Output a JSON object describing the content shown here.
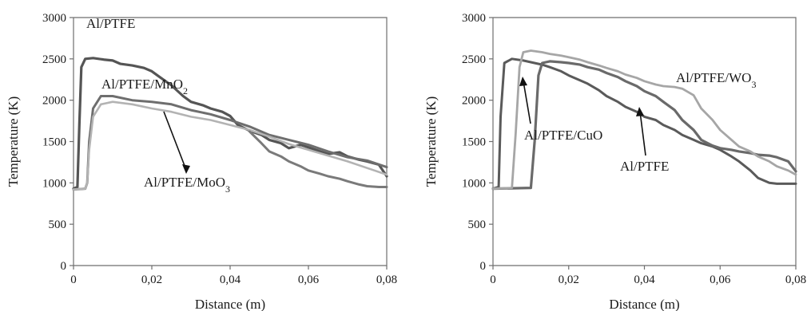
{
  "chart_data": [
    {
      "type": "line",
      "xlabel": "Distance (m)",
      "ylabel": "Temperature (K)",
      "xlim": [
        0,
        0.08
      ],
      "ylim": [
        0,
        3000
      ],
      "xticks": [
        0,
        0.02,
        0.04,
        0.06,
        0.08
      ],
      "xtick_labels": [
        "0",
        "0,02",
        "0,04",
        "0,06",
        "0,08"
      ],
      "yticks": [
        0,
        500,
        1000,
        1500,
        2000,
        2500,
        3000
      ],
      "ytick_labels": [
        "0",
        "500",
        "1000",
        "1500",
        "2000",
        "2500",
        "3000"
      ],
      "grid": false,
      "series": [
        {
          "name": "Al/PTFE",
          "color": "#555555",
          "x": [
            0,
            0.001,
            0.0015,
            0.002,
            0.003,
            0.005,
            0.008,
            0.01,
            0.012,
            0.015,
            0.018,
            0.02,
            0.022,
            0.025,
            0.028,
            0.03,
            0.033,
            0.035,
            0.038,
            0.04,
            0.042,
            0.045,
            0.048,
            0.05,
            0.053,
            0.055,
            0.058,
            0.06,
            0.063,
            0.065,
            0.068,
            0.07,
            0.073,
            0.075,
            0.078,
            0.08
          ],
          "y": [
            930,
            950,
            1700,
            2400,
            2500,
            2510,
            2490,
            2480,
            2440,
            2420,
            2390,
            2350,
            2280,
            2180,
            2050,
            1980,
            1940,
            1900,
            1860,
            1810,
            1700,
            1630,
            1580,
            1520,
            1480,
            1420,
            1460,
            1430,
            1380,
            1350,
            1370,
            1320,
            1280,
            1260,
            1220,
            1080
          ]
        },
        {
          "name": "Al/PTFE/MnO",
          "name_sub": "2",
          "color": "#6e6e6e",
          "x": [
            0,
            0.003,
            0.0035,
            0.004,
            0.005,
            0.007,
            0.01,
            0.015,
            0.02,
            0.025,
            0.03,
            0.035,
            0.04,
            0.045,
            0.05,
            0.055,
            0.06,
            0.065,
            0.07,
            0.075,
            0.08
          ],
          "y": [
            920,
            930,
            1000,
            1500,
            1900,
            2050,
            2050,
            2000,
            1980,
            1950,
            1880,
            1830,
            1760,
            1680,
            1580,
            1520,
            1460,
            1380,
            1310,
            1270,
            1190
          ]
        },
        {
          "name": "Al/PTFE/MoO",
          "name_sub": "3",
          "color": "#b3b3b3",
          "x": [
            0,
            0.003,
            0.0035,
            0.004,
            0.005,
            0.007,
            0.01,
            0.015,
            0.02,
            0.025,
            0.03,
            0.035,
            0.04,
            0.045,
            0.05,
            0.055,
            0.06,
            0.065,
            0.07,
            0.075,
            0.08
          ],
          "y": [
            920,
            930,
            1000,
            1400,
            1800,
            1950,
            1980,
            1950,
            1900,
            1860,
            1800,
            1760,
            1700,
            1640,
            1560,
            1470,
            1400,
            1330,
            1260,
            1180,
            1100
          ]
        },
        {
          "name": "Al/PTFE/MnO2 (lower)",
          "name_hidden": true,
          "color": "#7a7a7a",
          "x": [
            0.045,
            0.048,
            0.05,
            0.053,
            0.055,
            0.058,
            0.06,
            0.063,
            0.065,
            0.068,
            0.07,
            0.073,
            0.075,
            0.078,
            0.08
          ],
          "y": [
            1620,
            1480,
            1380,
            1320,
            1260,
            1200,
            1150,
            1110,
            1080,
            1050,
            1020,
            980,
            960,
            950,
            950
          ]
        }
      ],
      "annotations": [
        {
          "text": "Al/PTFE",
          "sub": ""
        },
        {
          "text": "Al/PTFE/MnO",
          "sub": "2"
        },
        {
          "text": "Al/PTFE/MoO",
          "sub": "3"
        }
      ]
    },
    {
      "type": "line",
      "xlabel": "Distance (m)",
      "ylabel": "Temperature (K)",
      "xlim": [
        0,
        0.08
      ],
      "ylim": [
        0,
        3000
      ],
      "xticks": [
        0,
        0.02,
        0.04,
        0.06,
        0.08
      ],
      "xtick_labels": [
        "0",
        "0,02",
        "0,04",
        "0,06",
        "0,08"
      ],
      "yticks": [
        0,
        500,
        1000,
        1500,
        2000,
        2500,
        3000
      ],
      "ytick_labels": [
        "0",
        "500",
        "1000",
        "1500",
        "2000",
        "2500",
        "3000"
      ],
      "grid": false,
      "series": [
        {
          "name": "Al/PTFE",
          "color": "#5a5a5a",
          "x": [
            0,
            0.0015,
            0.002,
            0.003,
            0.005,
            0.008,
            0.01,
            0.013,
            0.015,
            0.018,
            0.02,
            0.023,
            0.025,
            0.028,
            0.03,
            0.033,
            0.035,
            0.038,
            0.04,
            0.043,
            0.045,
            0.048,
            0.05,
            0.053,
            0.055,
            0.058,
            0.06,
            0.063,
            0.065,
            0.068,
            0.07,
            0.073,
            0.075,
            0.078,
            0.08
          ],
          "y": [
            930,
            950,
            1800,
            2450,
            2500,
            2480,
            2460,
            2430,
            2400,
            2350,
            2300,
            2240,
            2200,
            2120,
            2050,
            1980,
            1920,
            1860,
            1800,
            1760,
            1700,
            1640,
            1580,
            1520,
            1480,
            1440,
            1400,
            1320,
            1260,
            1150,
            1060,
            1000,
            990,
            990,
            990
          ]
        },
        {
          "name": "Al/PTFE/CuO",
          "color": "#6a6a6a",
          "x": [
            0,
            0.01,
            0.011,
            0.012,
            0.013,
            0.015,
            0.018,
            0.02,
            0.023,
            0.025,
            0.028,
            0.03,
            0.033,
            0.035,
            0.038,
            0.04,
            0.043,
            0.045,
            0.048,
            0.05,
            0.053,
            0.055,
            0.058,
            0.06,
            0.063,
            0.065,
            0.068,
            0.07,
            0.073,
            0.075,
            0.078,
            0.08
          ],
          "y": [
            930,
            940,
            1500,
            2300,
            2450,
            2470,
            2460,
            2450,
            2430,
            2400,
            2370,
            2330,
            2280,
            2230,
            2170,
            2110,
            2050,
            1980,
            1880,
            1760,
            1640,
            1520,
            1450,
            1420,
            1400,
            1380,
            1360,
            1340,
            1330,
            1310,
            1260,
            1140
          ]
        },
        {
          "name": "Al/PTFE/WO",
          "name_sub": "3",
          "color": "#a6a6a6",
          "x": [
            0,
            0.005,
            0.006,
            0.007,
            0.008,
            0.01,
            0.013,
            0.015,
            0.018,
            0.02,
            0.023,
            0.025,
            0.028,
            0.03,
            0.033,
            0.035,
            0.038,
            0.04,
            0.043,
            0.045,
            0.048,
            0.05,
            0.053,
            0.055,
            0.058,
            0.06,
            0.063,
            0.065,
            0.068,
            0.07,
            0.073,
            0.075,
            0.078,
            0.08
          ],
          "y": [
            930,
            940,
            1600,
            2400,
            2580,
            2600,
            2580,
            2560,
            2540,
            2520,
            2490,
            2460,
            2420,
            2390,
            2350,
            2310,
            2270,
            2230,
            2190,
            2170,
            2160,
            2140,
            2060,
            1900,
            1760,
            1640,
            1520,
            1440,
            1380,
            1320,
            1260,
            1200,
            1150,
            1100
          ]
        }
      ],
      "annotations": [
        {
          "text": "Al/PTFE/WO",
          "sub": "3"
        },
        {
          "text": "Al/PTFE/CuO",
          "sub": ""
        },
        {
          "text": "Al/PTFE",
          "sub": ""
        }
      ]
    }
  ]
}
